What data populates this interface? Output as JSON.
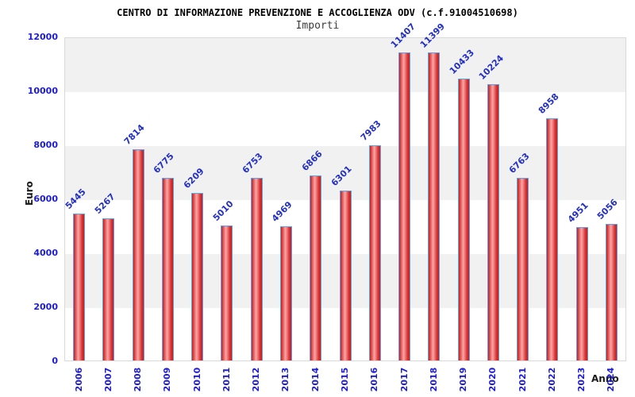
{
  "chart_data": {
    "type": "bar",
    "title": "CENTRO DI INFORMAZIONE PREVENZIONE E ACCOGLIENZA ODV (c.f.91004510698)",
    "subtitle": "Importi",
    "xlabel": "Anno",
    "ylabel": "Euro",
    "categories": [
      "2006",
      "2007",
      "2008",
      "2009",
      "2010",
      "2011",
      "2012",
      "2013",
      "2014",
      "2015",
      "2016",
      "2017",
      "2018",
      "2019",
      "2020",
      "2021",
      "2022",
      "2023",
      "2024"
    ],
    "values": [
      5445,
      5267,
      7814,
      6775,
      6209,
      5010,
      6753,
      4969,
      6866,
      6301,
      7983,
      11407,
      11399,
      10433,
      10224,
      6763,
      8958,
      4951,
      5056
    ],
    "ylim": [
      0,
      12000
    ],
    "ytick_step": 2000,
    "grid": "horizontal-bands-alternating",
    "legend": "none"
  },
  "colors": {
    "bar_edge": "#c91e1e",
    "bar_highlight": "#f8a8a8",
    "bar_border": "#58a6ea",
    "tick_label": "#1c1cd8",
    "value_label": "#2330c4",
    "band_gray": "#f1f1f2",
    "band_white": "#ffffff",
    "plot_border": "#d9d9d9",
    "title": "#000000",
    "subtitle": "#3c3c3c"
  }
}
